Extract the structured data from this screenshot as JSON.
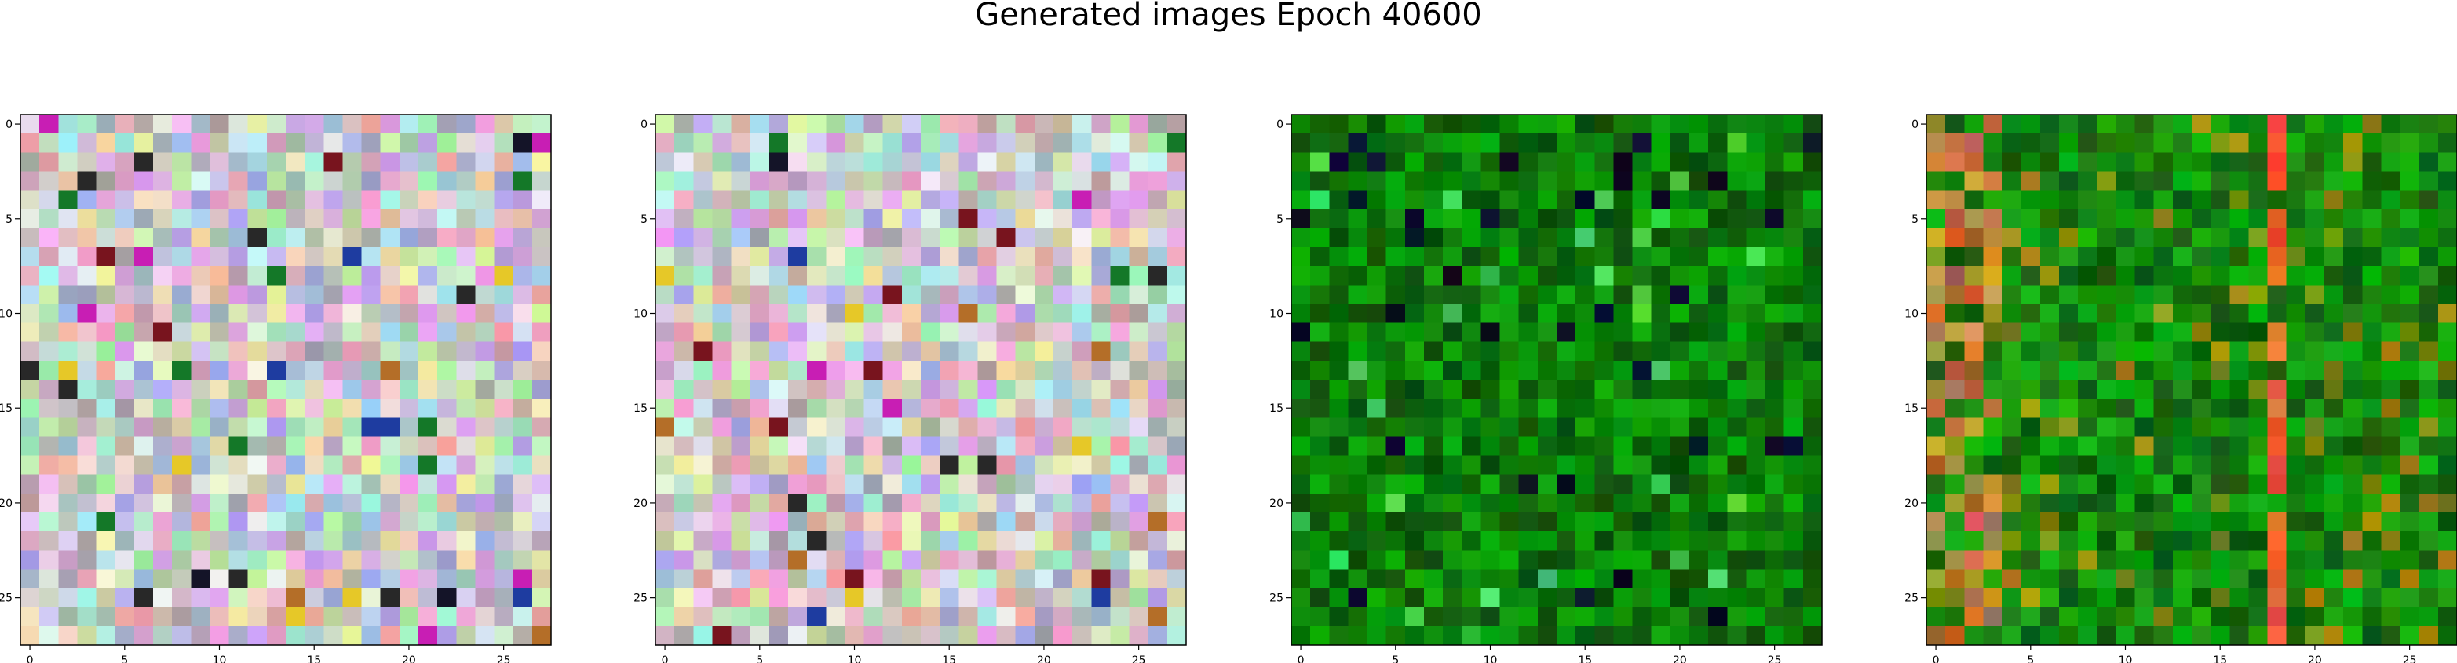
{
  "figure": {
    "title": "Generated images Epoch 40600"
  },
  "chart_data": [
    {
      "type": "heatmap",
      "palette": "pastel-random",
      "grid": false,
      "xlim": [
        -0.5,
        27.5
      ],
      "ylim": [
        27.5,
        -0.5
      ],
      "xticks": [
        "0",
        "5",
        "10",
        "15",
        "20",
        "25"
      ],
      "yticks": [
        "0",
        "5",
        "10",
        "15",
        "20",
        "25"
      ],
      "size": [
        28,
        28
      ]
    },
    {
      "type": "heatmap",
      "palette": "pastel-random",
      "grid": false,
      "xlim": [
        -0.5,
        27.5
      ],
      "ylim": [
        27.5,
        -0.5
      ],
      "xticks": [
        "0",
        "5",
        "10",
        "15",
        "20",
        "25"
      ],
      "yticks": [
        "0",
        "5",
        "10",
        "15",
        "20",
        "25"
      ],
      "size": [
        28,
        28
      ]
    },
    {
      "type": "heatmap",
      "palette": "green",
      "grid": false,
      "xlim": [
        -0.5,
        27.5
      ],
      "ylim": [
        27.5,
        -0.5
      ],
      "xticks": [
        "0",
        "5",
        "10",
        "15",
        "20",
        "25"
      ],
      "yticks": [
        "0",
        "5",
        "10",
        "15",
        "20",
        "25"
      ],
      "size": [
        28,
        28
      ]
    },
    {
      "type": "heatmap",
      "palette": "green-orange",
      "grid": false,
      "xlim": [
        -0.5,
        27.5
      ],
      "ylim": [
        27.5,
        -0.5
      ],
      "xticks": [
        "0",
        "5",
        "10",
        "15",
        "20",
        "25"
      ],
      "yticks": [
        "0",
        "5",
        "10",
        "15",
        "20",
        "25"
      ],
      "size": [
        28,
        28
      ]
    }
  ]
}
